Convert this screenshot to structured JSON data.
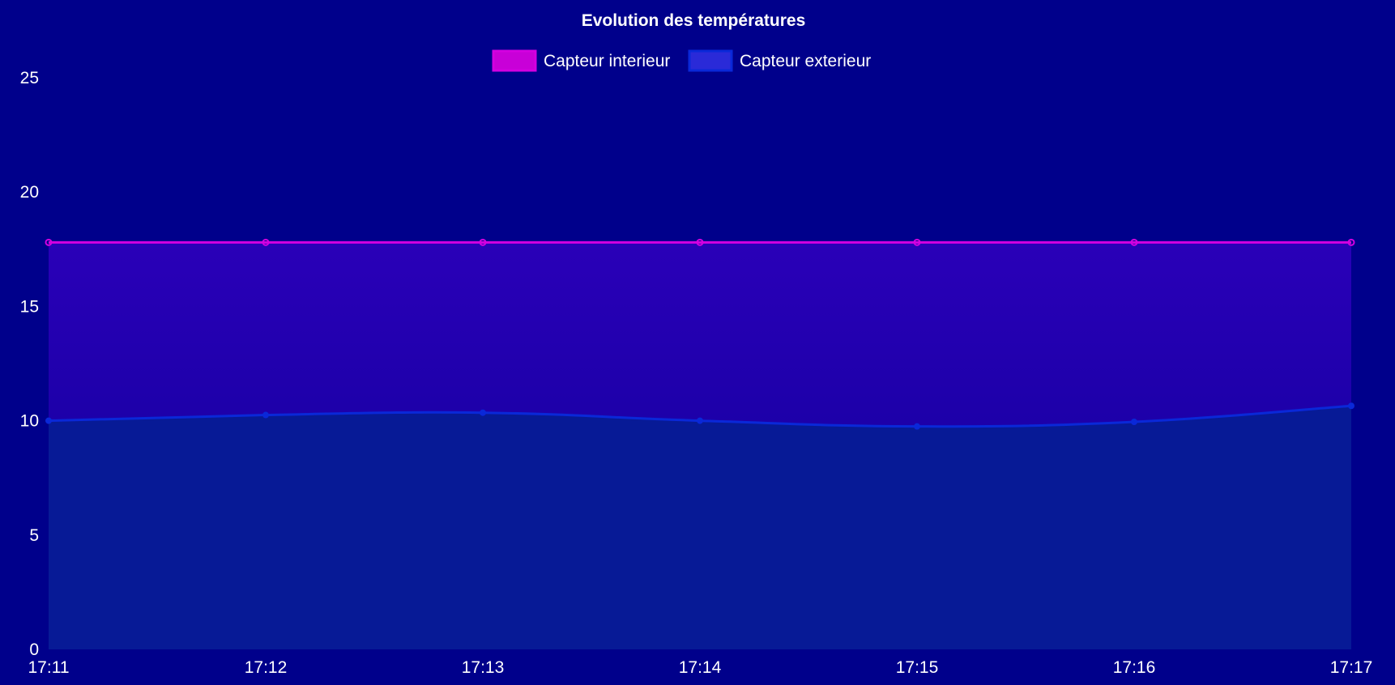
{
  "chart_data": {
    "type": "area",
    "title": "Evolution des températures",
    "categories": [
      "17:11",
      "17:12",
      "17:13",
      "17:14",
      "17:15",
      "17:16",
      "17:17"
    ],
    "y_ticks": [
      "0",
      "5",
      "10",
      "15",
      "20",
      "25"
    ],
    "ylim": [
      0,
      25
    ],
    "grid": false,
    "legend_position": "top",
    "series": [
      {
        "name": "Capteur interieur",
        "values": [
          17.8,
          17.8,
          17.8,
          17.8,
          17.8,
          17.8,
          17.8
        ],
        "line_color": "#d400e0",
        "legend_fill": "#c800d8"
      },
      {
        "name": "Capteur exterieur",
        "values": [
          10.0,
          10.25,
          10.35,
          10.0,
          9.75,
          9.95,
          10.65
        ],
        "line_color": "#0a28d8",
        "legend_fill": "#2a2ad8"
      }
    ],
    "colors": {
      "background": "#00008b",
      "exterior_fill": "#071a96",
      "interior_fill_top": "#2a00b8",
      "interior_fill_bottom": "#0c0096",
      "text": "#ffffff"
    }
  }
}
